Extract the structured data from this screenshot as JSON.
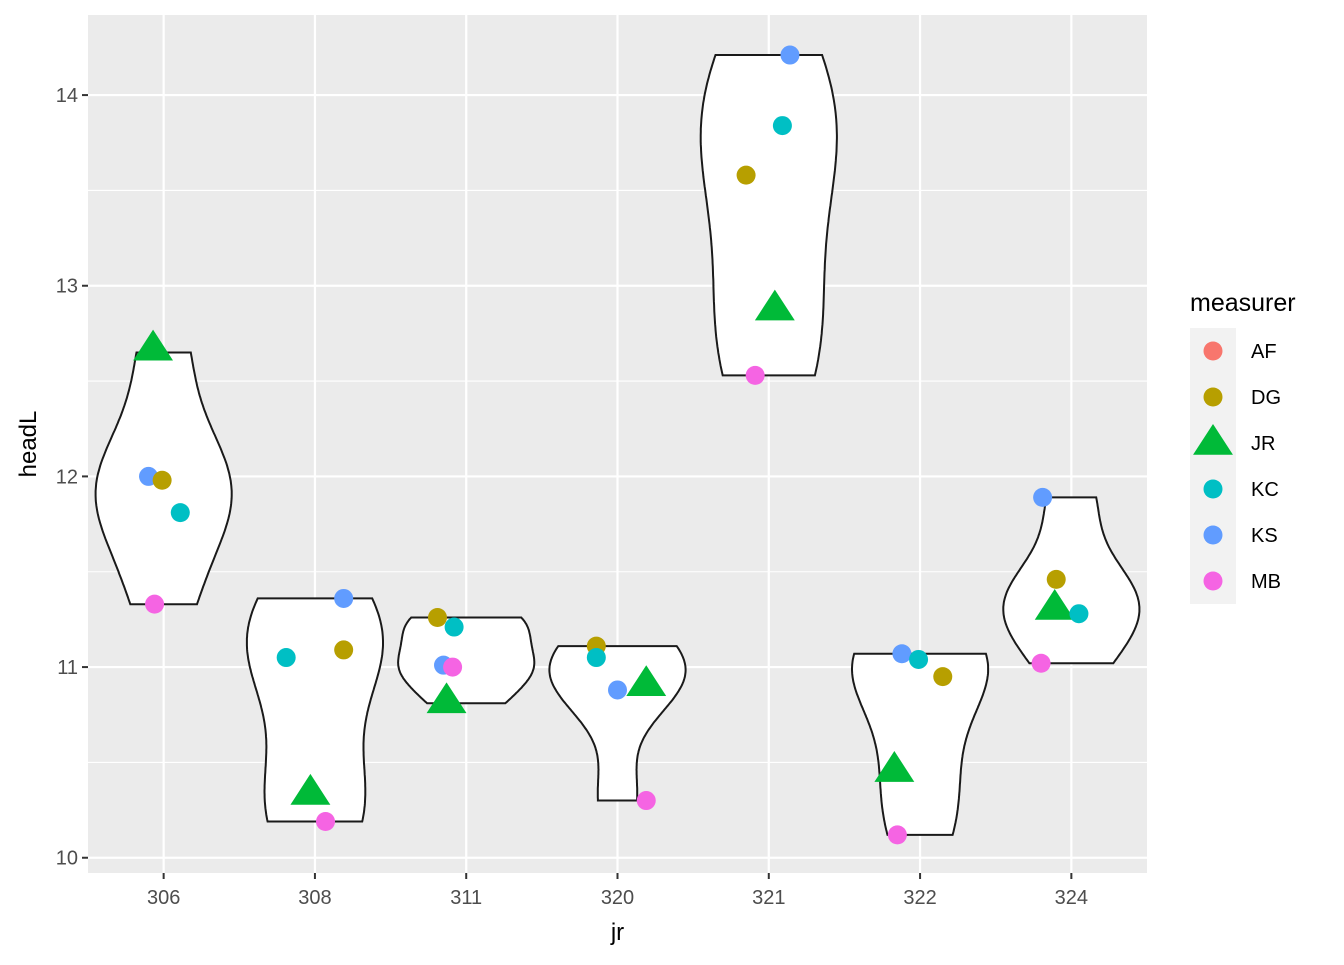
{
  "chart_data": {
    "type": "scatter",
    "xlabel": "jr",
    "ylabel": "headL",
    "categories": [
      "306",
      "308",
      "311",
      "320",
      "321",
      "322",
      "324"
    ],
    "ylim": [
      9.92,
      14.42
    ],
    "y_ticks": [
      10,
      11,
      12,
      13,
      14
    ],
    "grid": true,
    "legend": {
      "title": "measurer",
      "position": "right",
      "entries": [
        {
          "label": "AF",
          "color": "#F8766D",
          "shape": "circle"
        },
        {
          "label": "DG",
          "color": "#B79F00",
          "shape": "circle"
        },
        {
          "label": "JR",
          "color": "#00BA38",
          "shape": "triangle"
        },
        {
          "label": "KC",
          "color": "#00BFC4",
          "shape": "circle"
        },
        {
          "label": "KS",
          "color": "#619CFF",
          "shape": "circle"
        },
        {
          "label": "MB",
          "color": "#F564E3",
          "shape": "circle"
        }
      ]
    },
    "violins": [
      {
        "category": "306",
        "min": 11.33,
        "max": 12.65
      },
      {
        "category": "308",
        "min": 10.19,
        "max": 11.36
      },
      {
        "category": "311",
        "min": 10.81,
        "max": 11.26
      },
      {
        "category": "320",
        "min": 10.3,
        "max": 11.11
      },
      {
        "category": "321",
        "min": 12.53,
        "max": 14.21
      },
      {
        "category": "322",
        "min": 10.12,
        "max": 11.07
      },
      {
        "category": "324",
        "min": 11.02,
        "max": 11.89
      }
    ],
    "points": [
      {
        "category": "306",
        "measurer": "JR",
        "y": 12.67,
        "jitter": -0.07
      },
      {
        "category": "306",
        "measurer": "KS",
        "y": 12.0,
        "jitter": -0.1
      },
      {
        "category": "306",
        "measurer": "DG",
        "y": 11.98,
        "jitter": -0.01
      },
      {
        "category": "306",
        "measurer": "KC",
        "y": 11.81,
        "jitter": 0.11
      },
      {
        "category": "306",
        "measurer": "MB",
        "y": 11.33,
        "jitter": -0.06
      },
      {
        "category": "308",
        "measurer": "KS",
        "y": 11.36,
        "jitter": 0.19
      },
      {
        "category": "308",
        "measurer": "DG",
        "y": 11.09,
        "jitter": 0.19
      },
      {
        "category": "308",
        "measurer": "KC",
        "y": 11.05,
        "jitter": -0.19
      },
      {
        "category": "308",
        "measurer": "JR",
        "y": 10.34,
        "jitter": -0.03
      },
      {
        "category": "308",
        "measurer": "MB",
        "y": 10.19,
        "jitter": 0.07
      },
      {
        "category": "311",
        "measurer": "DG",
        "y": 11.26,
        "jitter": -0.19
      },
      {
        "category": "311",
        "measurer": "KC",
        "y": 11.21,
        "jitter": -0.08
      },
      {
        "category": "311",
        "measurer": "KS",
        "y": 11.01,
        "jitter": -0.15
      },
      {
        "category": "311",
        "measurer": "MB",
        "y": 11.0,
        "jitter": -0.09
      },
      {
        "category": "311",
        "measurer": "JR",
        "y": 10.82,
        "jitter": -0.13
      },
      {
        "category": "320",
        "measurer": "DG",
        "y": 11.11,
        "jitter": -0.14
      },
      {
        "category": "320",
        "measurer": "KC",
        "y": 11.05,
        "jitter": -0.14
      },
      {
        "category": "320",
        "measurer": "JR",
        "y": 10.91,
        "jitter": 0.19
      },
      {
        "category": "320",
        "measurer": "KS",
        "y": 10.88,
        "jitter": 0.0
      },
      {
        "category": "320",
        "measurer": "MB",
        "y": 10.3,
        "jitter": 0.19
      },
      {
        "category": "321",
        "measurer": "KS",
        "y": 14.21,
        "jitter": 0.14
      },
      {
        "category": "321",
        "measurer": "KC",
        "y": 13.84,
        "jitter": 0.09
      },
      {
        "category": "321",
        "measurer": "DG",
        "y": 13.58,
        "jitter": -0.15
      },
      {
        "category": "321",
        "measurer": "JR",
        "y": 12.88,
        "jitter": 0.04
      },
      {
        "category": "321",
        "measurer": "MB",
        "y": 12.53,
        "jitter": -0.09
      },
      {
        "category": "322",
        "measurer": "KS",
        "y": 11.07,
        "jitter": -0.12
      },
      {
        "category": "322",
        "measurer": "KC",
        "y": 11.04,
        "jitter": -0.01
      },
      {
        "category": "322",
        "measurer": "DG",
        "y": 10.95,
        "jitter": 0.15
      },
      {
        "category": "322",
        "measurer": "JR",
        "y": 10.46,
        "jitter": -0.17
      },
      {
        "category": "322",
        "measurer": "MB",
        "y": 10.12,
        "jitter": -0.15
      },
      {
        "category": "324",
        "measurer": "KS",
        "y": 11.89,
        "jitter": -0.19
      },
      {
        "category": "324",
        "measurer": "DG",
        "y": 11.46,
        "jitter": -0.1
      },
      {
        "category": "324",
        "measurer": "JR",
        "y": 11.31,
        "jitter": -0.11
      },
      {
        "category": "324",
        "measurer": "KC",
        "y": 11.28,
        "jitter": 0.05
      },
      {
        "category": "324",
        "measurer": "MB",
        "y": 11.02,
        "jitter": -0.2
      }
    ]
  }
}
